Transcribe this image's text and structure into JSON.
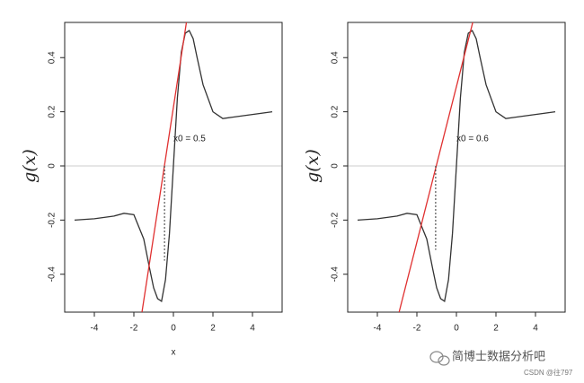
{
  "chart_data": [
    {
      "type": "line",
      "xlabel": "x",
      "ylabel": "g(x)",
      "annotation": "x0 = 0.5",
      "xlim": [
        -5.5,
        5.5
      ],
      "ylim": [
        -0.54,
        0.53
      ],
      "xticks": [
        -4,
        -2,
        0,
        2,
        4
      ],
      "yticks": [
        -0.4,
        -0.2,
        0.0,
        0.2,
        0.4
      ],
      "hline": {
        "value": 0,
        "color": "#cccccc"
      },
      "series": [
        {
          "color": "#333333",
          "x": [
            -5,
            -4,
            -3,
            -2.5,
            -2,
            -1.5,
            -1.2,
            -1,
            -0.8,
            -0.6,
            -0.4,
            -0.2,
            0,
            0.2,
            0.4,
            0.6,
            0.8,
            1,
            1.2,
            1.5,
            2,
            2.5,
            3,
            4,
            5
          ],
          "values": [
            -0.2,
            -0.195,
            -0.185,
            -0.175,
            -0.18,
            -0.27,
            -0.38,
            -0.45,
            -0.49,
            -0.5,
            -0.42,
            -0.25,
            0,
            0.25,
            0.42,
            0.49,
            0.5,
            0.47,
            0.4,
            0.3,
            0.2,
            0.175,
            0.18,
            0.19,
            0.2
          ]
        },
        {
          "color": "#e03030",
          "x": [
            -1.59,
            0.68
          ],
          "values": [
            -0.54,
            0.54
          ]
        },
        {
          "color": "#333333",
          "dash": true,
          "x": [
            -0.45,
            -0.45
          ],
          "values": [
            0,
            -0.35
          ]
        }
      ]
    },
    {
      "type": "line",
      "ylabel": "g(x)",
      "annotation": "x0 = 0.6",
      "xlim": [
        -5.5,
        5.5
      ],
      "ylim": [
        -0.54,
        0.53
      ],
      "xticks": [
        -4,
        -2,
        0,
        2,
        4
      ],
      "yticks": [
        -0.4,
        -0.2,
        0.0,
        0.2,
        0.4
      ],
      "hline": {
        "value": 0,
        "color": "#cccccc"
      },
      "series": [
        {
          "color": "#333333",
          "x": [
            -5,
            -4,
            -3,
            -2.5,
            -2,
            -1.5,
            -1.2,
            -1,
            -0.8,
            -0.6,
            -0.4,
            -0.2,
            0,
            0.2,
            0.4,
            0.6,
            0.8,
            1,
            1.2,
            1.5,
            2,
            2.5,
            3,
            4,
            5
          ],
          "values": [
            -0.2,
            -0.195,
            -0.185,
            -0.175,
            -0.18,
            -0.27,
            -0.38,
            -0.45,
            -0.49,
            -0.5,
            -0.42,
            -0.25,
            0,
            0.25,
            0.42,
            0.49,
            0.5,
            0.47,
            0.4,
            0.3,
            0.2,
            0.175,
            0.18,
            0.19,
            0.2
          ]
        },
        {
          "color": "#e03030",
          "x": [
            -2.9,
            0.86
          ],
          "values": [
            -0.54,
            0.54
          ]
        },
        {
          "color": "#333333",
          "dash": true,
          "x": [
            -1.05,
            -1.05
          ],
          "values": [
            0,
            -0.31
          ]
        }
      ]
    }
  ],
  "watermark": {
    "brand": "简博士数据分析吧",
    "credit": "CSDN @往797"
  }
}
